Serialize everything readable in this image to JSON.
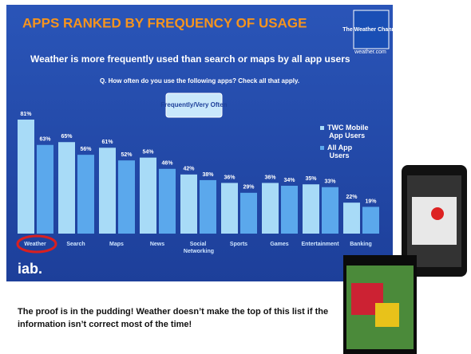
{
  "chart_data": {
    "type": "bar",
    "title": "APPS RANKED BY FREQUENCY OF USAGE",
    "subtitle": "Weather is more frequently used than search or maps by all app users",
    "question": "Q. How often do you use the following apps? Check all that apply.",
    "annotation": "Frequently/Very Often",
    "logo": "The Weather Channel",
    "logo_url": "weather.com",
    "footer_logo": "iab.",
    "categories": [
      "Weather",
      "Search",
      "Maps",
      "News",
      "Social Networking",
      "Sports",
      "Games",
      "Entertainment",
      "Banking"
    ],
    "series": [
      {
        "name": "TWC Mobile App Users",
        "color": "#a8dbf7",
        "values": [
          81,
          65,
          61,
          54,
          42,
          36,
          36,
          35,
          22
        ],
        "value_labels": [
          "81%",
          "65%",
          "61%",
          "54%",
          "42%",
          "36%",
          "36%",
          "35%",
          "22%"
        ]
      },
      {
        "name": "All App Users",
        "color": "#5ba8ec",
        "values": [
          63,
          56,
          52,
          46,
          38,
          29,
          34,
          33,
          19
        ],
        "value_labels": [
          "63%",
          "56%",
          "52%",
          "46%",
          "38%",
          "29%",
          "34%",
          "33%",
          "19%"
        ]
      }
    ]
  },
  "caption": "The proof is in the pudding! Weather doesn’t make the top of this list if the information isn’t correct most of the time!"
}
